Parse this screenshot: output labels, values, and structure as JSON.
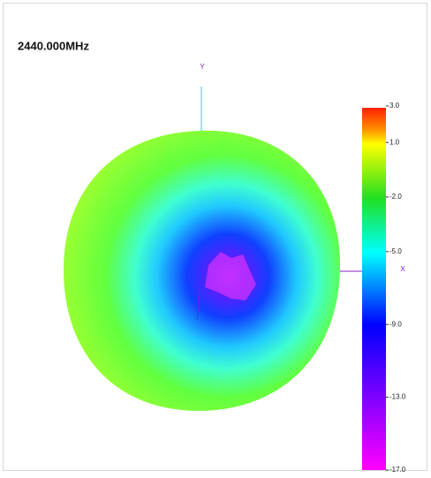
{
  "title": "2440.000MHz",
  "axes": {
    "y": "Y",
    "x": "X"
  },
  "colorbar": {
    "range": [
      -17,
      3
    ],
    "ticks": [
      {
        "value": 3,
        "label": "3.0"
      },
      {
        "value": 1,
        "label": "1.0"
      },
      {
        "value": -2,
        "label": "-2.0"
      },
      {
        "value": -5,
        "label": "-5.0"
      },
      {
        "value": -9,
        "label": "-9.0"
      },
      {
        "value": -13,
        "label": "-13.0"
      },
      {
        "value": -17,
        "label": "-17.0"
      }
    ]
  }
}
